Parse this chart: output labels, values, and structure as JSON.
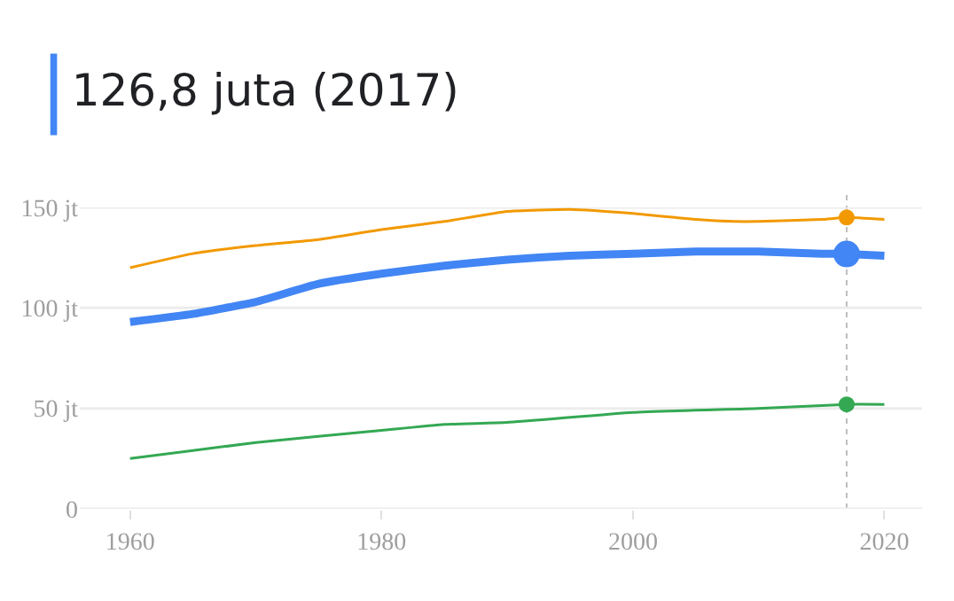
{
  "chart_data": {
    "type": "line",
    "title": "126,8 juta (2017)",
    "xlim": [
      1956,
      2023
    ],
    "xticks": [
      1960,
      1980,
      2000,
      2020
    ],
    "ylim": [
      0,
      150
    ],
    "yticks": [
      {
        "value": 0,
        "label": "0"
      },
      {
        "value": 50,
        "label": "50 jt"
      },
      {
        "value": 100,
        "label": "100 jt"
      },
      {
        "value": 150,
        "label": "150 jt"
      }
    ],
    "grid": "y",
    "marker": "none",
    "line_style": "solid",
    "ref_lines": [
      {
        "axis": "x",
        "value": 2017,
        "color": "#bdbdbd",
        "line_style": "dotted"
      }
    ],
    "series": [
      {
        "color": "#4285f4",
        "x": [
          1960,
          1965,
          1970,
          1975,
          1980,
          1985,
          1990,
          1995,
          2000,
          2005,
          2010,
          2015,
          2017,
          2020
        ],
        "values": [
          93,
          97,
          103,
          112,
          117,
          121,
          124,
          126,
          127,
          128,
          128,
          127,
          126.8,
          126
        ]
      },
      {
        "color": "#f29900",
        "x": [
          1960,
          1965,
          1970,
          1975,
          1980,
          1985,
          1990,
          1995,
          2000,
          2005,
          2008,
          2010,
          2015,
          2017,
          2020
        ],
        "values": [
          120,
          127,
          131,
          134,
          139,
          143,
          148,
          149,
          147,
          144,
          143,
          143,
          144,
          145,
          144
        ]
      },
      {
        "color": "#34a853",
        "x": [
          1960,
          1970,
          1980,
          1985,
          1990,
          2000,
          2010,
          2017,
          2020
        ],
        "values": [
          25,
          33,
          39,
          42,
          43,
          48,
          50,
          52,
          52
        ]
      },
      {
        "type": "scatter",
        "marker": "circle",
        "color": "#4285f4",
        "x": [
          2017
        ],
        "values": [
          126.8
        ]
      },
      {
        "type": "scatter",
        "marker": "circle",
        "color": "#f29900",
        "x": [
          2017
        ],
        "values": [
          145
        ]
      },
      {
        "type": "scatter",
        "marker": "circle",
        "color": "#34a853",
        "x": [
          2017
        ],
        "values": [
          52
        ]
      }
    ]
  }
}
